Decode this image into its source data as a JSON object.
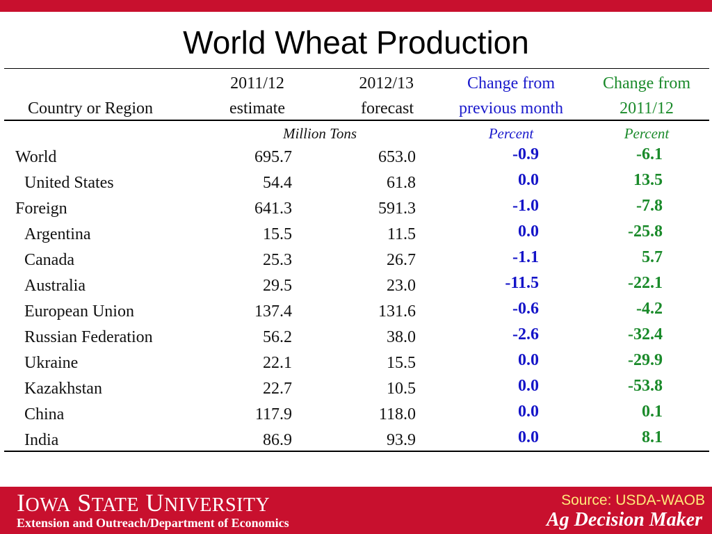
{
  "title": "World Wheat Production",
  "headers": {
    "country_line1": "",
    "country_line2": "Country or Region",
    "col1_line1": "2011/12",
    "col1_line2": "estimate",
    "col2_line1": "2012/13",
    "col2_line2": "forecast",
    "col3_line1": "Change from",
    "col3_line2": "previous month",
    "col4_line1": "Change from",
    "col4_line2": "2011/12"
  },
  "units": {
    "tons": "Million Tons",
    "percent_month": "Percent",
    "percent_year": "Percent"
  },
  "rows": [
    {
      "name": "World",
      "est": "695.7",
      "fcst": "653.0",
      "pm": "-0.9",
      "py": "-6.1"
    },
    {
      "name": "United States",
      "est": "54.4",
      "fcst": "61.8",
      "pm": "0.0",
      "py": "13.5"
    },
    {
      "name": "Foreign",
      "est": "641.3",
      "fcst": "591.3",
      "pm": "-1.0",
      "py": "-7.8"
    },
    {
      "name": "Argentina",
      "est": "15.5",
      "fcst": "11.5",
      "pm": "0.0",
      "py": "-25.8"
    },
    {
      "name": "Canada",
      "est": "25.3",
      "fcst": "26.7",
      "pm": "-1.1",
      "py": "5.7"
    },
    {
      "name": "Australia",
      "est": "29.5",
      "fcst": "23.0",
      "pm": "-11.5",
      "py": "-22.1"
    },
    {
      "name": "European Union",
      "est": "137.4",
      "fcst": "131.6",
      "pm": "-0.6",
      "py": "-4.2"
    },
    {
      "name": "Russian Federation",
      "est": "56.2",
      "fcst": "38.0",
      "pm": "-2.6",
      "py": "-32.4"
    },
    {
      "name": "Ukraine",
      "est": "22.1",
      "fcst": "15.5",
      "pm": "0.0",
      "py": "-29.9"
    },
    {
      "name": "Kazakhstan",
      "est": "22.7",
      "fcst": "10.5",
      "pm": "0.0",
      "py": "-53.8"
    },
    {
      "name": "China",
      "est": "117.9",
      "fcst": "118.0",
      "pm": "0.0",
      "py": "0.1"
    },
    {
      "name": "India",
      "est": "86.9",
      "fcst": "93.9",
      "pm": "0.0",
      "py": "8.1"
    }
  ],
  "footer": {
    "university_first_cap": "I",
    "university_first_rest": "OWA",
    "university_second_cap": "S",
    "university_second_rest": "TATE",
    "university_third_cap": "U",
    "university_third_rest": "NIVERSITY",
    "extension": "Extension and Outreach/Department of Economics",
    "source": "Source: USDA-WAOB",
    "brand": "Ag Decision Maker"
  },
  "colors": {
    "brand_red": "#c8102e",
    "blue": "#1414c8",
    "green": "#1a8a2a",
    "source_yellow": "#ffe97a"
  }
}
